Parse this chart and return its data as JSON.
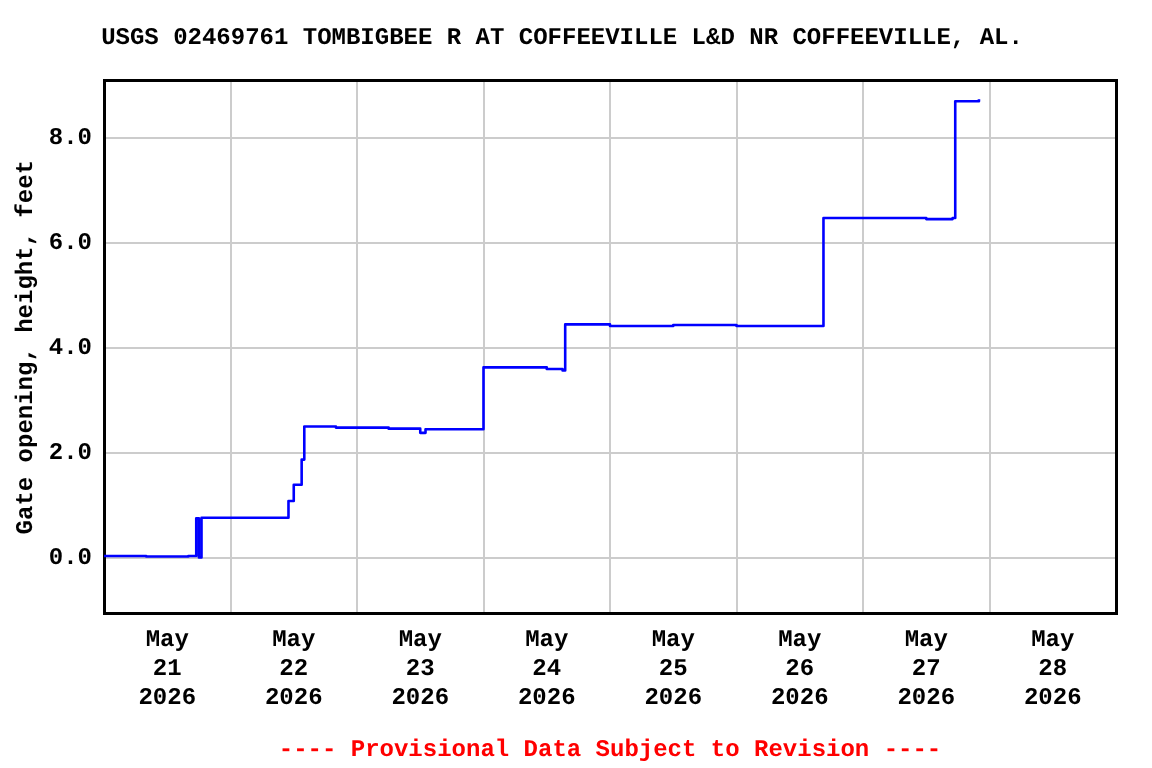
{
  "chart_data": {
    "type": "step",
    "title": "USGS 02469761 TOMBIGBEE R AT COFFEEVILLE L&D NR COFFEEVILLE, AL.",
    "ylabel": "Gate opening, height, feet",
    "annotations": [
      "---- Provisional Data Subject to Revision ----"
    ],
    "x": [
      "2026-05-21T00:00",
      "2026-05-21T08:00",
      "2026-05-21T16:00",
      "2026-05-21T17:30",
      "2026-05-21T18:00",
      "2026-05-21T18:30",
      "2026-05-22T11:00",
      "2026-05-22T12:00",
      "2026-05-22T13:30",
      "2026-05-22T14:00",
      "2026-05-22T20:00",
      "2026-05-23T06:00",
      "2026-05-23T12:00",
      "2026-05-23T13:00",
      "2026-05-24T00:00",
      "2026-05-24T12:00",
      "2026-05-24T15:00",
      "2026-05-24T15:30",
      "2026-05-25T00:00",
      "2026-05-25T12:00",
      "2026-05-26T00:00",
      "2026-05-26T12:00",
      "2026-05-26T16:30",
      "2026-05-27T00:00",
      "2026-05-27T12:00",
      "2026-05-27T17:00",
      "2026-05-27T17:30",
      "2026-05-27T22:00"
    ],
    "series": [
      {
        "color": "#0000ff",
        "values": [
          0.03,
          0.02,
          0.03,
          0.75,
          0.0,
          0.76,
          1.08,
          1.39,
          1.87,
          2.5,
          2.48,
          2.46,
          2.38,
          2.45,
          3.63,
          3.6,
          3.57,
          4.45,
          4.42,
          4.44,
          4.42,
          4.42,
          6.48,
          6.48,
          6.46,
          6.48,
          8.71,
          8.75
        ]
      }
    ],
    "xlim": [
      "2026-05-21T00:00",
      "2026-05-29T00:00"
    ],
    "xticks": [
      {
        "value": "2026-05-21T00:00",
        "label": null
      },
      {
        "value": "2026-05-21T12:00",
        "label": "May\n21\n2026"
      },
      {
        "value": "2026-05-22T00:00",
        "label": null
      },
      {
        "value": "2026-05-22T12:00",
        "label": "May\n22\n2026"
      },
      {
        "value": "2026-05-23T00:00",
        "label": null
      },
      {
        "value": "2026-05-23T12:00",
        "label": "May\n23\n2026"
      },
      {
        "value": "2026-05-24T00:00",
        "label": null
      },
      {
        "value": "2026-05-24T12:00",
        "label": "May\n24\n2026"
      },
      {
        "value": "2026-05-25T00:00",
        "label": null
      },
      {
        "value": "2026-05-25T12:00",
        "label": "May\n25\n2026"
      },
      {
        "value": "2026-05-26T00:00",
        "label": null
      },
      {
        "value": "2026-05-26T12:00",
        "label": "May\n26\n2026"
      },
      {
        "value": "2026-05-27T00:00",
        "label": null
      },
      {
        "value": "2026-05-27T12:00",
        "label": "May\n27\n2026"
      },
      {
        "value": "2026-05-28T00:00",
        "label": null
      },
      {
        "value": "2026-05-28T12:00",
        "label": "May\n28\n2026"
      },
      {
        "value": "2026-05-29T00:00",
        "label": null
      }
    ],
    "ylim": [
      -1.07,
      9.1
    ],
    "yticks": [
      {
        "value": 0,
        "label": "0.0"
      },
      {
        "value": 2,
        "label": "2.0"
      },
      {
        "value": 4,
        "label": "4.0"
      },
      {
        "value": 6,
        "label": "6.0"
      },
      {
        "value": 8,
        "label": "8.0"
      }
    ],
    "grid": true,
    "legend": false,
    "marker": "none",
    "line_style": "solid"
  }
}
